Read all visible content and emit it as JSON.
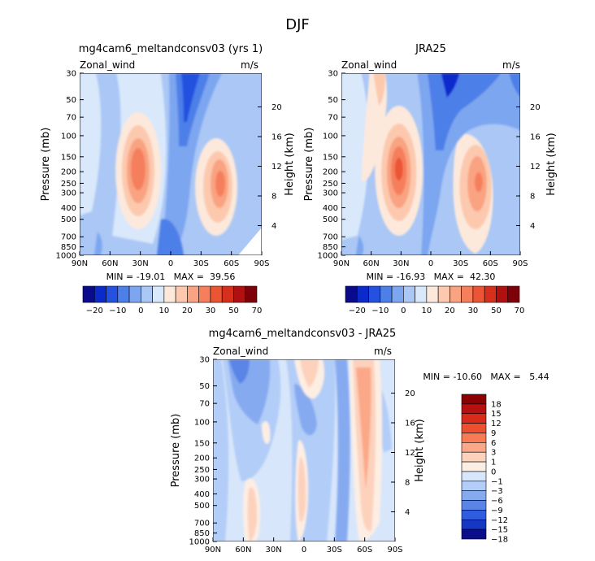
{
  "figure": {
    "title": "DJF"
  },
  "chart_data": [
    {
      "type": "heatmap",
      "title": "mg4cam6_meltandconsv03 (yrs 1)",
      "field_label": "Zonal_wind",
      "units_label": "m/s",
      "ylabel": "Pressure (mb)",
      "ylabel_right": "Height (km)",
      "x_tick_labels": [
        "90N",
        "60N",
        "30N",
        "0",
        "30S",
        "60S",
        "90S"
      ],
      "y_tick_labels": [
        "30",
        "50",
        "70",
        "100",
        "150",
        "200",
        "250",
        "300",
        "400",
        "500",
        "700",
        "850",
        "1000"
      ],
      "y_right_tick_labels": [
        "20",
        "16",
        "12",
        "8",
        "4"
      ],
      "min_max_text": "MIN = -19.01   MAX =  39.56",
      "min": -19.01,
      "max": 39.56,
      "color_levels": [
        -20,
        -15,
        -10,
        -5,
        0,
        5,
        10,
        15,
        20,
        25,
        30,
        40,
        50,
        60,
        70
      ],
      "colorbar_labels": [
        "-20",
        "-10",
        "0",
        "10",
        "20",
        "30",
        "50",
        "70"
      ]
    },
    {
      "type": "heatmap",
      "title": "JRA25",
      "field_label": "Zonal_wind",
      "units_label": "m/s",
      "ylabel": "Pressure (mb)",
      "ylabel_right": "Height (km)",
      "x_tick_labels": [
        "90N",
        "60N",
        "30N",
        "0",
        "30S",
        "60S",
        "90S"
      ],
      "y_tick_labels": [
        "30",
        "50",
        "70",
        "100",
        "150",
        "200",
        "250",
        "300",
        "400",
        "500",
        "700",
        "850",
        "1000"
      ],
      "y_right_tick_labels": [
        "20",
        "16",
        "12",
        "8",
        "4"
      ],
      "min_max_text": "MIN = -16.93   MAX =  42.30",
      "min": -16.93,
      "max": 42.3,
      "color_levels": [
        -20,
        -15,
        -10,
        -5,
        0,
        5,
        10,
        15,
        20,
        25,
        30,
        40,
        50,
        60,
        70
      ],
      "colorbar_labels": [
        "-20",
        "-10",
        "0",
        "10",
        "20",
        "30",
        "50",
        "70"
      ]
    },
    {
      "type": "heatmap",
      "title": "mg4cam6_meltandconsv03 - JRA25",
      "field_label": "Zonal_wind",
      "units_label": "m/s",
      "ylabel": "Pressure (mb)",
      "ylabel_right": "Height (km)",
      "x_tick_labels": [
        "90N",
        "60N",
        "30N",
        "0",
        "30S",
        "60S",
        "90S"
      ],
      "y_tick_labels": [
        "30",
        "50",
        "70",
        "100",
        "150",
        "200",
        "250",
        "300",
        "400",
        "500",
        "700",
        "850",
        "1000"
      ],
      "y_right_tick_labels": [
        "20",
        "16",
        "12",
        "8",
        "4"
      ],
      "min_max_text": "MIN = -10.60   MAX =   5.44",
      "min": -10.6,
      "max": 5.44,
      "colorbar_labels": [
        "18",
        "15",
        "12",
        "9",
        "6",
        "3",
        "1",
        "0",
        "-1",
        "-3",
        "-6",
        "-9",
        "-12",
        "-15",
        "-18"
      ]
    }
  ],
  "colors": {
    "full_palette": [
      "#0a0a8c",
      "#0a2acc",
      "#2451e0",
      "#4d7fe8",
      "#7da6f0",
      "#aac7f5",
      "#d9e8fb",
      "#fde9dc",
      "#fcc9ae",
      "#f9a382",
      "#f57f5c",
      "#ec5534",
      "#d6301c",
      "#b01010",
      "#7e0008"
    ],
    "diff_palette": [
      "#8b0000",
      "#b81010",
      "#d92b1a",
      "#ee4f2e",
      "#f77c56",
      "#fba888",
      "#fdd2bd",
      "#fdeee3",
      "#d8e6fb",
      "#b2cdf7",
      "#86aaf0",
      "#5a85e7",
      "#2f5de0",
      "#1537c4",
      "#0a0e8a"
    ]
  }
}
